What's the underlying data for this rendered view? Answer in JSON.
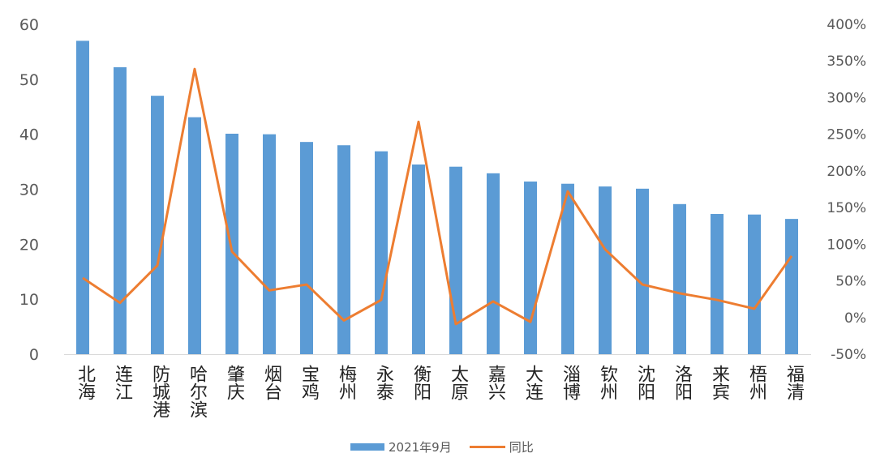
{
  "chart_data": {
    "type": "bar+line",
    "categories": [
      "北海",
      "连江",
      "防城港",
      "哈尔滨",
      "肇庆",
      "烟台",
      "宝鸡",
      "梅州",
      "永泰",
      "衡阳",
      "太原",
      "嘉兴",
      "大连",
      "淄博",
      "钦州",
      "沈阳",
      "洛阳",
      "来宾",
      "梧州",
      "福清"
    ],
    "series": [
      {
        "name": "2021年9月",
        "type": "bar",
        "axis": "left",
        "color": "#5B9BD5",
        "values": [
          57,
          52.2,
          47,
          43.1,
          40.1,
          40,
          38.6,
          38,
          36.9,
          34.5,
          34.1,
          32.9,
          31.4,
          31,
          30.5,
          30.1,
          27.3,
          25.5,
          25.4,
          24.6
        ]
      },
      {
        "name": "同比",
        "type": "line",
        "axis": "right",
        "color": "#ED7D31",
        "values": [
          54,
          20,
          71,
          339,
          90,
          37,
          45,
          -4,
          24,
          267,
          -9,
          22,
          -6,
          172,
          93,
          45,
          33,
          24,
          12,
          84
        ]
      }
    ],
    "y_left": {
      "lim": [
        0,
        60
      ],
      "ticks": [
        "0",
        "10",
        "20",
        "30",
        "40",
        "50",
        "60"
      ]
    },
    "y_right": {
      "lim": [
        -50,
        400
      ],
      "ticks": [
        "-50%",
        "0%",
        "50%",
        "100%",
        "150%",
        "200%",
        "250%",
        "300%",
        "350%",
        "400%"
      ]
    },
    "grid": false,
    "legend": "bottom"
  }
}
